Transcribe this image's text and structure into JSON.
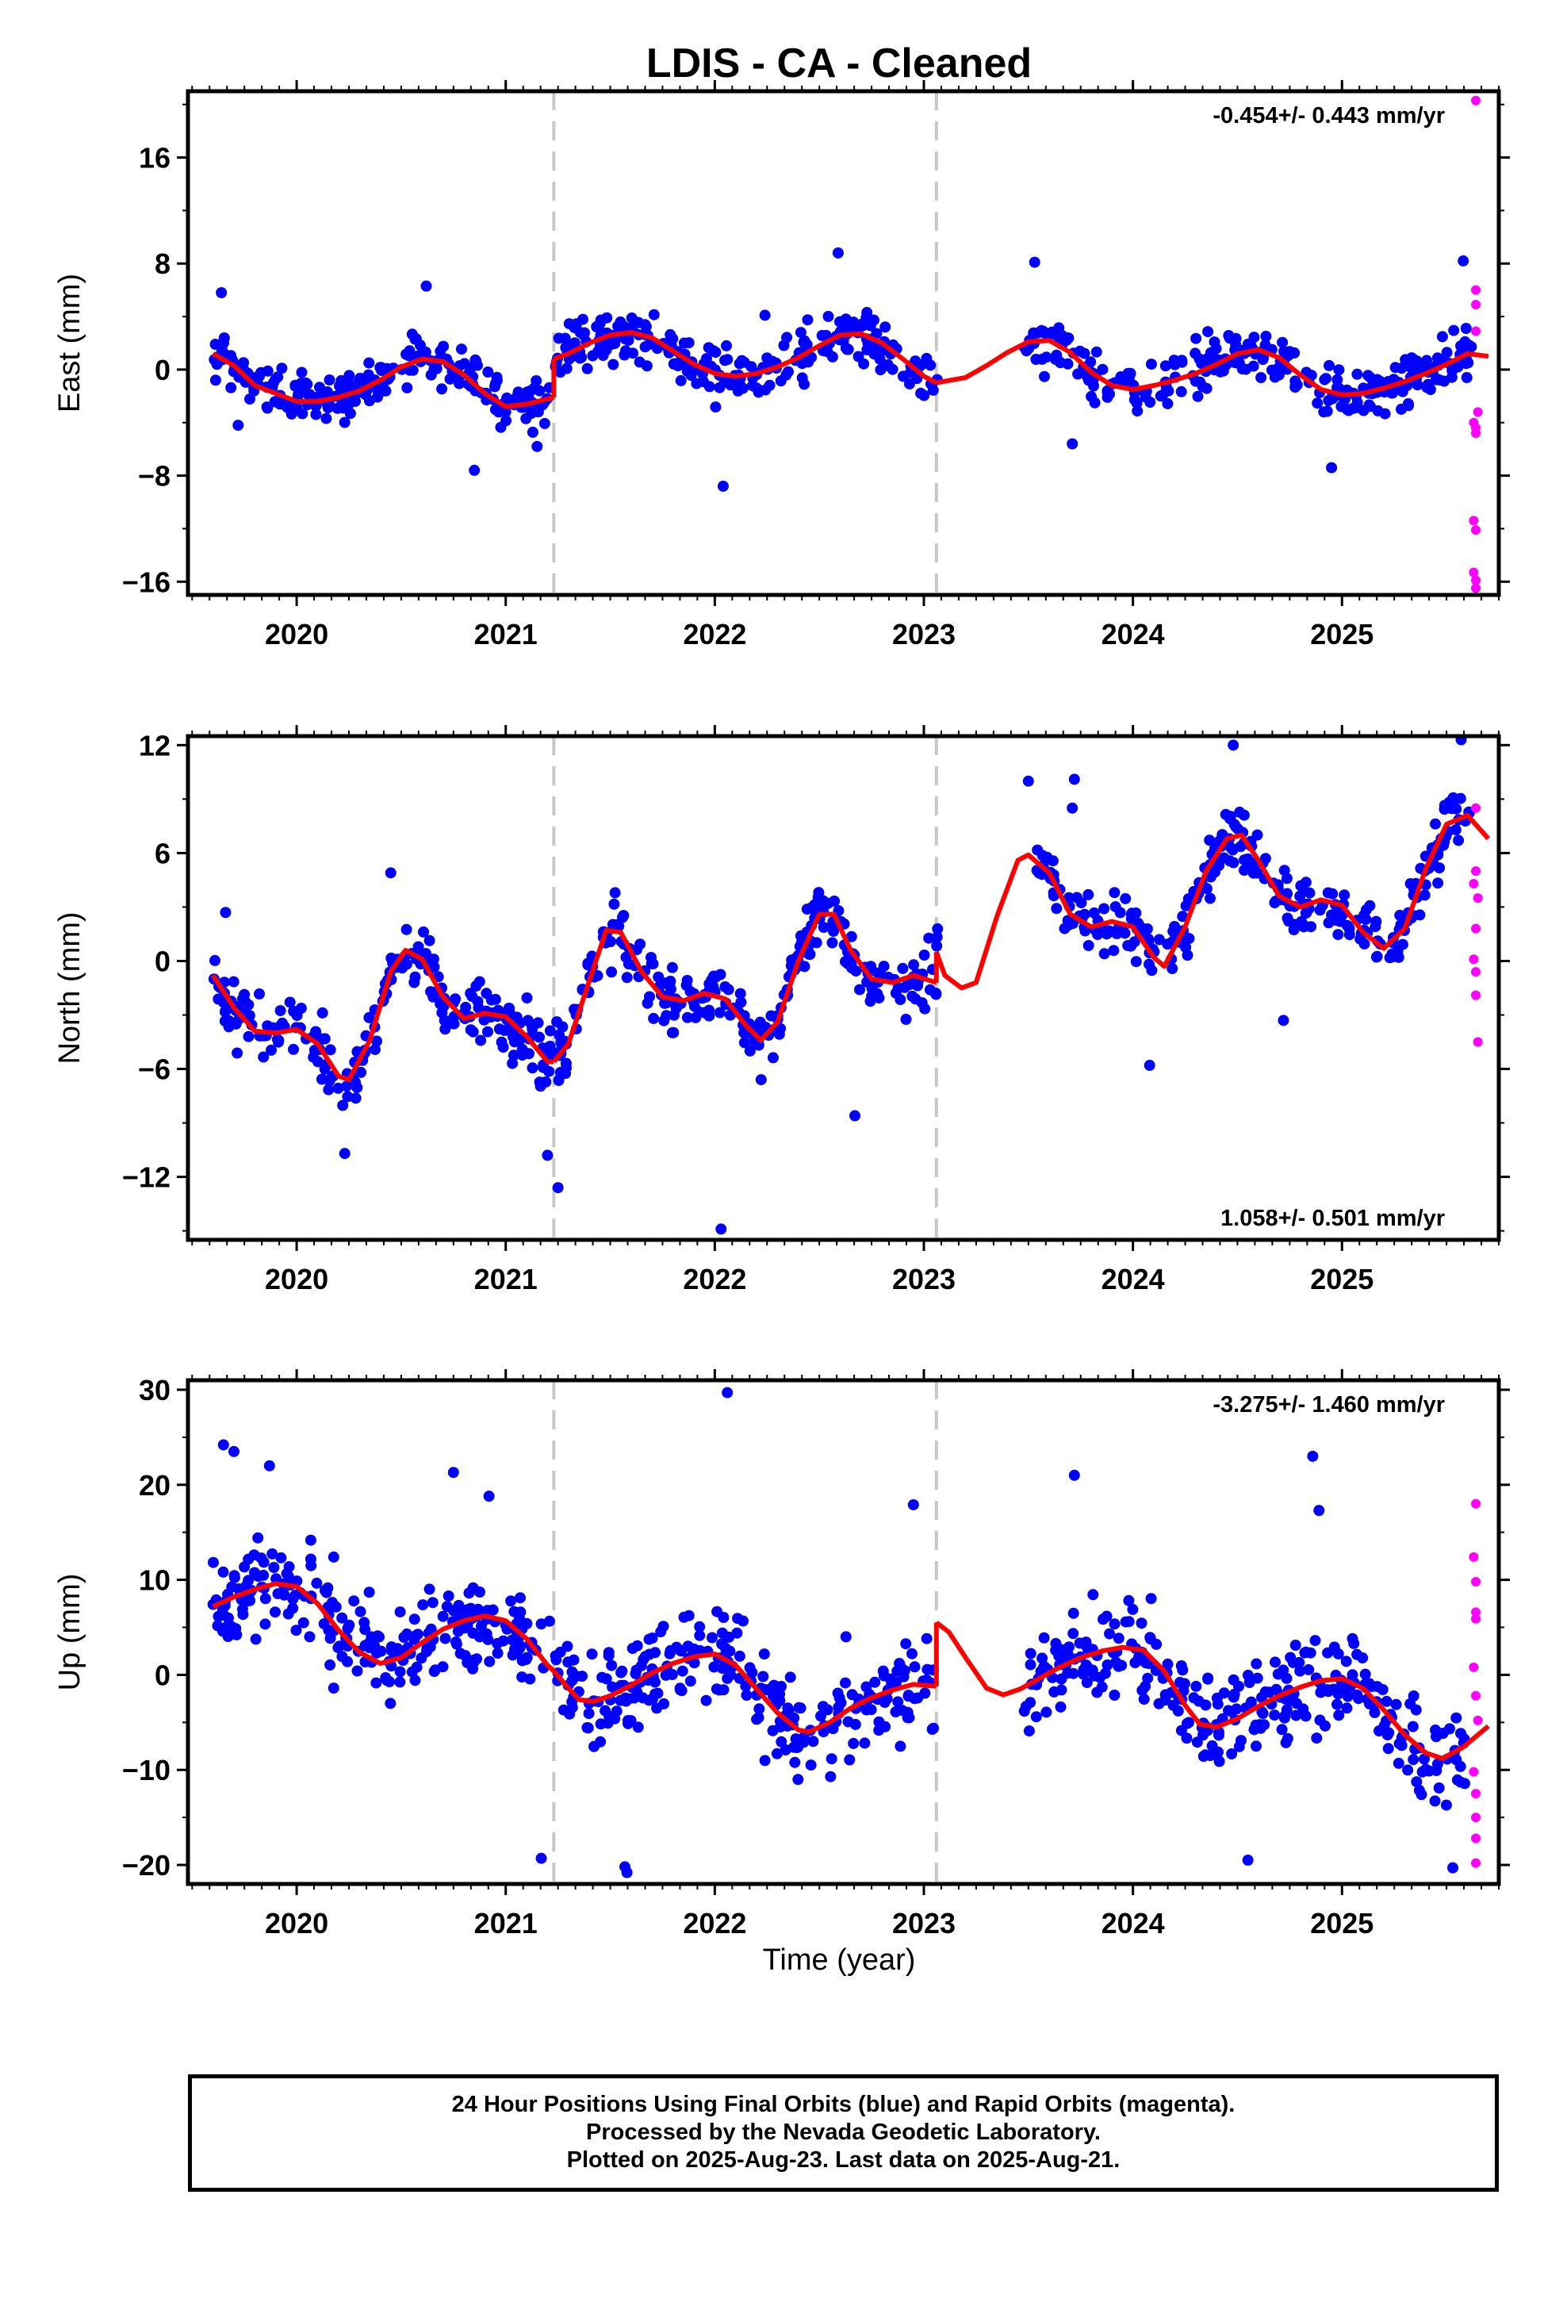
{
  "title": "LDIS  - CA - Cleaned",
  "xlabel": "Time (year)",
  "colors": {
    "final": "#0000ff",
    "rapid": "#ff00ff",
    "model": "#ff0000",
    "break": "#c8c8c8"
  },
  "footer": {
    "line1": "24 Hour Positions Using Final Orbits (blue) and Rapid Orbits (magenta).",
    "line2": "Processed by the Nevada Geodetic Laboratory.",
    "line3": "Plotted on 2025-Aug-23. Last data on 2025-Aug-21."
  },
  "chart_data": [
    {
      "type": "scatter",
      "ylabel": "East (mm)",
      "rate": "-0.454+/- 0.443 mm/yr",
      "rate_position": "top-right",
      "xlim": [
        2019.48,
        2025.75
      ],
      "ylim": [
        -17,
        21
      ],
      "yticks": [
        16,
        8,
        0,
        -8,
        -16
      ],
      "xticks": [
        2020,
        2021,
        2022,
        2023,
        2024,
        2025
      ],
      "breaks": [
        2021.23,
        2023.06
      ],
      "grid": false,
      "model_segments": [
        [
          [
            2019.6,
            1.2
          ],
          [
            2019.7,
            0.3
          ],
          [
            2019.8,
            -1.2
          ],
          [
            2019.9,
            -1.8
          ],
          [
            2020.0,
            -2.4
          ],
          [
            2020.1,
            -2.4
          ],
          [
            2020.2,
            -2.1
          ],
          [
            2020.3,
            -1.6
          ],
          [
            2020.4,
            -0.8
          ],
          [
            2020.5,
            0.2
          ],
          [
            2020.6,
            0.8
          ],
          [
            2020.7,
            0.6
          ],
          [
            2020.8,
            -0.4
          ],
          [
            2020.9,
            -1.8
          ],
          [
            2021.0,
            -2.8
          ],
          [
            2021.1,
            -2.6
          ],
          [
            2021.23,
            -2.1
          ]
        ],
        [
          [
            2021.23,
            0.8
          ],
          [
            2021.3,
            1.2
          ],
          [
            2021.4,
            2.0
          ],
          [
            2021.5,
            2.6
          ],
          [
            2021.6,
            2.8
          ],
          [
            2021.7,
            2.4
          ],
          [
            2021.8,
            1.4
          ],
          [
            2021.9,
            0.4
          ],
          [
            2022.0,
            -0.3
          ],
          [
            2022.1,
            -0.5
          ],
          [
            2022.2,
            -0.3
          ],
          [
            2022.3,
            0.2
          ],
          [
            2022.4,
            0.9
          ],
          [
            2022.5,
            1.8
          ],
          [
            2022.6,
            2.6
          ],
          [
            2022.7,
            2.7
          ],
          [
            2022.8,
            2.0
          ],
          [
            2022.9,
            0.8
          ],
          [
            2023.0,
            -0.5
          ],
          [
            2023.06,
            -1.0
          ]
        ],
        [
          [
            2023.06,
            -1.0
          ],
          [
            2023.2,
            -0.6
          ],
          [
            2023.3,
            0.3
          ],
          [
            2023.4,
            1.3
          ],
          [
            2023.5,
            2.1
          ],
          [
            2023.6,
            2.2
          ],
          [
            2023.7,
            1.3
          ],
          [
            2023.8,
            -0.2
          ],
          [
            2023.9,
            -1.2
          ],
          [
            2024.0,
            -1.5
          ],
          [
            2024.1,
            -1.2
          ],
          [
            2024.2,
            -0.8
          ],
          [
            2024.3,
            -0.3
          ],
          [
            2024.4,
            0.4
          ],
          [
            2024.5,
            1.2
          ],
          [
            2024.6,
            1.5
          ],
          [
            2024.7,
            0.9
          ],
          [
            2024.8,
            -0.4
          ],
          [
            2024.9,
            -1.5
          ],
          [
            2025.0,
            -1.9
          ],
          [
            2025.1,
            -1.8
          ],
          [
            2025.2,
            -1.4
          ],
          [
            2025.3,
            -0.9
          ],
          [
            2025.4,
            -0.3
          ],
          [
            2025.5,
            0.4
          ],
          [
            2025.6,
            1.2
          ],
          [
            2025.7,
            1.0
          ]
        ]
      ],
      "rapid": [
        [
          2025.64,
          20.3
        ],
        [
          2025.64,
          6.0
        ],
        [
          2025.64,
          4.9
        ],
        [
          2025.64,
          2.9
        ],
        [
          2025.65,
          -3.2
        ],
        [
          2025.63,
          -4.0
        ],
        [
          2025.64,
          -4.4
        ],
        [
          2025.64,
          -4.8
        ],
        [
          2025.63,
          -11.4
        ],
        [
          2025.64,
          -12.1
        ],
        [
          2025.63,
          -15.3
        ],
        [
          2025.64,
          -15.9
        ],
        [
          2025.64,
          -16.5
        ]
      ],
      "outliers": [
        [
          2019.64,
          5.8
        ],
        [
          2020.62,
          6.3
        ],
        [
          2022.04,
          -8.8
        ],
        [
          2022.59,
          8.8
        ],
        [
          2023.53,
          8.1
        ],
        [
          2025.58,
          8.2
        ],
        [
          2020.85,
          -7.6
        ],
        [
          2024.95,
          -7.4
        ],
        [
          2019.72,
          -4.2
        ],
        [
          2021.15,
          -5.8
        ],
        [
          2023.71,
          -5.6
        ],
        [
          2022.24,
          4.1
        ]
      ],
      "cloud": {
        "sigma": 1.8,
        "count": 820,
        "gaps": [
          [
            2023.08,
            2023.48
          ]
        ]
      }
    },
    {
      "type": "scatter",
      "ylabel": "North (mm)",
      "rate": "1.058+/- 0.501 mm/yr",
      "rate_position": "bottom-right",
      "xlim": [
        2019.48,
        2025.75
      ],
      "ylim": [
        -15.5,
        12.5
      ],
      "yticks": [
        12,
        6,
        0,
        -6,
        -12
      ],
      "xticks": [
        2020,
        2021,
        2022,
        2023,
        2024,
        2025
      ],
      "breaks": [
        2021.23,
        2023.06
      ],
      "grid": false,
      "model_segments": [
        [
          [
            2019.6,
            -0.8
          ],
          [
            2019.7,
            -2.6
          ],
          [
            2019.8,
            -3.9
          ],
          [
            2019.9,
            -4.0
          ],
          [
            2020.0,
            -3.8
          ],
          [
            2020.1,
            -4.6
          ],
          [
            2020.2,
            -6.4
          ],
          [
            2020.25,
            -6.6
          ],
          [
            2020.35,
            -4.4
          ],
          [
            2020.45,
            -0.6
          ],
          [
            2020.52,
            0.6
          ],
          [
            2020.6,
            0.1
          ],
          [
            2020.7,
            -2.0
          ],
          [
            2020.8,
            -3.2
          ],
          [
            2020.9,
            -2.9
          ],
          [
            2021.0,
            -3.1
          ],
          [
            2021.1,
            -4.2
          ],
          [
            2021.2,
            -5.6
          ],
          [
            2021.23,
            -5.6
          ]
        ],
        [
          [
            2021.23,
            -5.6
          ],
          [
            2021.3,
            -4.6
          ],
          [
            2021.4,
            -1.1
          ],
          [
            2021.48,
            1.7
          ],
          [
            2021.55,
            1.6
          ],
          [
            2021.65,
            -0.6
          ],
          [
            2021.75,
            -2.0
          ],
          [
            2021.85,
            -2.2
          ],
          [
            2021.95,
            -1.8
          ],
          [
            2022.05,
            -2.1
          ],
          [
            2022.15,
            -3.6
          ],
          [
            2022.22,
            -4.4
          ],
          [
            2022.3,
            -3.4
          ],
          [
            2022.4,
            0.0
          ],
          [
            2022.5,
            2.6
          ],
          [
            2022.57,
            2.6
          ],
          [
            2022.65,
            0.6
          ],
          [
            2022.75,
            -1.0
          ],
          [
            2022.85,
            -1.2
          ],
          [
            2022.95,
            -0.8
          ],
          [
            2023.06,
            -1.2
          ]
        ],
        [
          [
            2023.06,
            0.5
          ],
          [
            2023.1,
            -0.8
          ],
          [
            2023.18,
            -1.5
          ],
          [
            2023.25,
            -1.2
          ],
          [
            2023.35,
            2.5
          ],
          [
            2023.45,
            5.6
          ],
          [
            2023.5,
            5.9
          ],
          [
            2023.6,
            4.9
          ],
          [
            2023.7,
            2.6
          ],
          [
            2023.8,
            1.9
          ],
          [
            2023.9,
            2.2
          ],
          [
            2024.0,
            1.9
          ],
          [
            2024.1,
            0.2
          ],
          [
            2024.15,
            -0.3
          ],
          [
            2024.25,
            1.9
          ],
          [
            2024.35,
            5.0
          ],
          [
            2024.45,
            6.8
          ],
          [
            2024.52,
            7.0
          ],
          [
            2024.6,
            5.6
          ],
          [
            2024.7,
            3.6
          ],
          [
            2024.8,
            3.0
          ],
          [
            2024.9,
            3.4
          ],
          [
            2025.0,
            3.1
          ],
          [
            2025.1,
            1.6
          ],
          [
            2025.2,
            0.7
          ],
          [
            2025.3,
            1.8
          ],
          [
            2025.4,
            5.1
          ],
          [
            2025.5,
            7.6
          ],
          [
            2025.6,
            8.1
          ],
          [
            2025.7,
            6.8
          ]
        ]
      ],
      "rapid": [
        [
          2025.64,
          8.5
        ],
        [
          2025.64,
          5.0
        ],
        [
          2025.63,
          4.3
        ],
        [
          2025.65,
          3.5
        ],
        [
          2025.64,
          1.8
        ],
        [
          2025.63,
          0.1
        ],
        [
          2025.64,
          -0.6
        ],
        [
          2025.64,
          -1.9
        ],
        [
          2025.65,
          -4.5
        ]
      ],
      "outliers": [
        [
          2021.2,
          -10.8
        ],
        [
          2021.25,
          -12.6
        ],
        [
          2022.03,
          -14.9
        ],
        [
          2024.48,
          12.0
        ],
        [
          2025.57,
          12.3
        ],
        [
          2023.5,
          10.0
        ],
        [
          2024.08,
          -5.8
        ],
        [
          2019.66,
          2.7
        ],
        [
          2023.71,
          8.5
        ],
        [
          2020.23,
          -10.7
        ],
        [
          2022.67,
          -8.6
        ],
        [
          2020.45,
          4.9
        ],
        [
          2024.72,
          -3.3
        ],
        [
          2023.72,
          10.1
        ]
      ],
      "cloud": {
        "sigma": 1.6,
        "count": 820,
        "gaps": [
          [
            2023.08,
            2023.48
          ]
        ]
      }
    },
    {
      "type": "scatter",
      "ylabel": "Up (mm)",
      "rate": "-3.275+/- 1.460 mm/yr",
      "rate_position": "top-right",
      "xlim": [
        2019.48,
        2025.75
      ],
      "ylim": [
        -22,
        31
      ],
      "yticks": [
        30,
        20,
        10,
        0,
        -10,
        -20
      ],
      "xticks": [
        2020,
        2021,
        2022,
        2023,
        2024,
        2025
      ],
      "breaks": [
        2021.23,
        2023.06
      ],
      "grid": false,
      "model_segments": [
        [
          [
            2019.6,
            7.2
          ],
          [
            2019.7,
            8.2
          ],
          [
            2019.8,
            9.0
          ],
          [
            2019.9,
            9.6
          ],
          [
            2020.0,
            9.3
          ],
          [
            2020.1,
            7.5
          ],
          [
            2020.2,
            4.7
          ],
          [
            2020.3,
            2.4
          ],
          [
            2020.4,
            1.2
          ],
          [
            2020.5,
            1.8
          ],
          [
            2020.6,
            3.4
          ],
          [
            2020.7,
            4.8
          ],
          [
            2020.8,
            5.7
          ],
          [
            2020.9,
            6.2
          ],
          [
            2021.0,
            5.7
          ],
          [
            2021.1,
            3.8
          ],
          [
            2021.2,
            1.0
          ],
          [
            2021.23,
            0.4
          ]
        ],
        [
          [
            2021.23,
            0.4
          ],
          [
            2021.3,
            -1.4
          ],
          [
            2021.35,
            -2.6
          ],
          [
            2021.42,
            -2.8
          ],
          [
            2021.5,
            -2.2
          ],
          [
            2021.6,
            -1.1
          ],
          [
            2021.7,
            0.2
          ],
          [
            2021.8,
            1.2
          ],
          [
            2021.9,
            1.9
          ],
          [
            2022.0,
            2.2
          ],
          [
            2022.1,
            1.0
          ],
          [
            2022.2,
            -1.5
          ],
          [
            2022.3,
            -4.0
          ],
          [
            2022.4,
            -5.8
          ],
          [
            2022.45,
            -6.0
          ],
          [
            2022.55,
            -5.0
          ],
          [
            2022.65,
            -3.5
          ],
          [
            2022.75,
            -2.4
          ],
          [
            2022.85,
            -1.6
          ],
          [
            2022.95,
            -1.0
          ],
          [
            2023.06,
            -1.2
          ]
        ],
        [
          [
            2023.06,
            5.5
          ],
          [
            2023.12,
            4.5
          ],
          [
            2023.2,
            1.8
          ],
          [
            2023.3,
            -1.4
          ],
          [
            2023.38,
            -2.1
          ],
          [
            2023.46,
            -1.5
          ],
          [
            2023.55,
            -0.4
          ],
          [
            2023.65,
            0.8
          ],
          [
            2023.75,
            1.8
          ],
          [
            2023.85,
            2.5
          ],
          [
            2023.95,
            2.9
          ],
          [
            2024.05,
            2.6
          ],
          [
            2024.15,
            0.4
          ],
          [
            2024.25,
            -3.2
          ],
          [
            2024.32,
            -5.2
          ],
          [
            2024.4,
            -5.5
          ],
          [
            2024.5,
            -4.6
          ],
          [
            2024.6,
            -3.3
          ],
          [
            2024.7,
            -2.2
          ],
          [
            2024.8,
            -1.3
          ],
          [
            2024.9,
            -0.6
          ],
          [
            2025.0,
            -0.4
          ],
          [
            2025.1,
            -1.4
          ],
          [
            2025.2,
            -3.7
          ],
          [
            2025.3,
            -6.3
          ],
          [
            2025.4,
            -8.2
          ],
          [
            2025.48,
            -8.8
          ],
          [
            2025.58,
            -7.6
          ],
          [
            2025.7,
            -5.4
          ]
        ]
      ],
      "rapid": [
        [
          2025.64,
          18.0
        ],
        [
          2025.63,
          12.4
        ],
        [
          2025.64,
          9.8
        ],
        [
          2025.64,
          6.6
        ],
        [
          2025.64,
          5.9
        ],
        [
          2025.63,
          0.8
        ],
        [
          2025.64,
          -2.2
        ],
        [
          2025.65,
          -4.8
        ],
        [
          2025.63,
          -10.2
        ],
        [
          2025.64,
          -12.5
        ],
        [
          2025.64,
          -15.0
        ],
        [
          2025.64,
          -17.2
        ],
        [
          2025.64,
          -19.8
        ]
      ],
      "outliers": [
        [
          2022.06,
          29.7
        ],
        [
          2019.65,
          24.2
        ],
        [
          2019.7,
          23.5
        ],
        [
          2019.87,
          22.0
        ],
        [
          2024.86,
          23.0
        ],
        [
          2021.57,
          -20.2
        ],
        [
          2021.58,
          -20.8
        ],
        [
          2024.55,
          -19.5
        ],
        [
          2020.75,
          21.3
        ],
        [
          2023.72,
          21.0
        ],
        [
          2020.92,
          18.8
        ],
        [
          2025.53,
          -20.3
        ],
        [
          2021.17,
          -19.3
        ],
        [
          2024.89,
          17.3
        ],
        [
          2022.95,
          17.9
        ]
      ],
      "cloud": {
        "sigma": 4.6,
        "count": 880,
        "gaps": [
          [
            2023.08,
            2023.48
          ]
        ]
      }
    }
  ]
}
